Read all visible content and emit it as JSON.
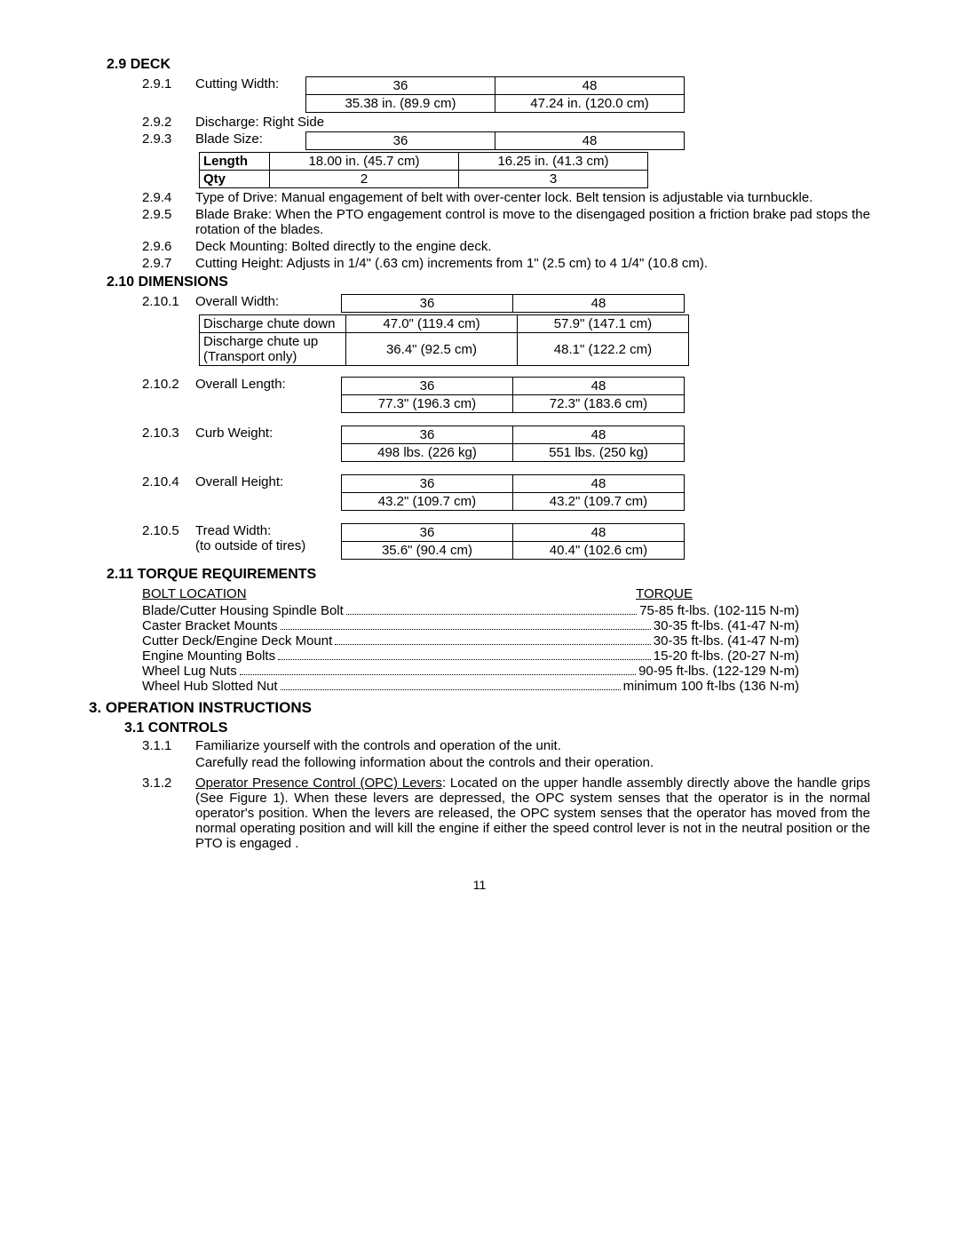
{
  "sections": {
    "deck": {
      "num": "2.9",
      "title": "DECK"
    },
    "dimensions": {
      "num": "2.10",
      "title": "DIMENSIONS"
    },
    "torque": {
      "num": "2.11",
      "title": "TORQUE REQUIREMENTS"
    },
    "op": {
      "num": "3.",
      "title": "OPERATION INSTRUCTIONS"
    },
    "controls": {
      "num": "3.1",
      "title": "CONTROLS"
    }
  },
  "deck": {
    "cutting_width": {
      "num": "2.9.1",
      "label": "Cutting Width:",
      "h36": "36",
      "h48": "48",
      "v36": "35.38 in. (89.9 cm)",
      "v48": "47.24 in. (120.0 cm)"
    },
    "discharge": {
      "num": "2.9.2",
      "text": "Discharge: Right Side"
    },
    "blade_size": {
      "num": "2.9.3",
      "label": "Blade Size:",
      "h36": "36",
      "h48": "48",
      "rows": [
        {
          "label": "Length",
          "v36": "18.00 in. (45.7 cm)",
          "v48": "16.25 in. (41.3 cm)"
        },
        {
          "label": "Qty",
          "v36": "2",
          "v48": "3"
        }
      ]
    },
    "drive": {
      "num": "2.9.4",
      "text": "Type of Drive: Manual engagement of belt with over-center lock.  Belt tension is adjustable via turnbuckle."
    },
    "brake": {
      "num": "2.9.5",
      "text": "Blade Brake:  When the PTO engagement control is move to the disengaged position a friction brake pad stops the rotation of the blades."
    },
    "mount": {
      "num": "2.9.6",
      "text": "Deck Mounting: Bolted directly to the engine deck."
    },
    "height": {
      "num": "2.9.7",
      "text": "Cutting Height: Adjusts in 1/4\" (.63 cm) increments from 1\" (2.5 cm) to 4 1/4\" (10.8 cm)."
    }
  },
  "dimensions": {
    "overall_width": {
      "num": "2.10.1",
      "label": "Overall Width:",
      "h36": "36",
      "h48": "48",
      "rows": [
        {
          "label": "Discharge chute down",
          "v36": "47.0\" (119.4 cm)",
          "v48": "57.9\" (147.1 cm)"
        },
        {
          "label": "Discharge chute up (Transport only)",
          "v36": "36.4\" (92.5 cm)",
          "v48": "48.1\" (122.2 cm)"
        }
      ]
    },
    "overall_length": {
      "num": "2.10.2",
      "label": "Overall Length:",
      "h36": "36",
      "h48": "48",
      "v36": "77.3\" (196.3 cm)",
      "v48": "72.3\" (183.6 cm)"
    },
    "curb_weight": {
      "num": "2.10.3",
      "label": "Curb Weight:",
      "h36": "36",
      "h48": "48",
      "v36": "498 lbs.   (226 kg)",
      "v48": "551 lbs. (250 kg)"
    },
    "overall_height": {
      "num": "2.10.4",
      "label": "Overall Height:",
      "h36": "36",
      "h48": "48",
      "v36": "43.2\" (109.7 cm)",
      "v48": "43.2\" (109.7 cm)"
    },
    "tread_width": {
      "num": "2.10.5",
      "label": "Tread Width:",
      "sub": "(to outside of tires)",
      "h36": "36",
      "h48": "48",
      "v36": "35.6\" (90.4 cm)",
      "v48": "40.4\" (102.6 cm)"
    }
  },
  "torque": {
    "head_loc": "BOLT LOCATION",
    "head_val": "TORQUE",
    "rows": [
      {
        "loc": "Blade/Cutter Housing Spindle Bolt",
        "val": "75-85 ft-lbs. (102-115 N-m)"
      },
      {
        "loc": "Caster Bracket Mounts",
        "val": "30-35 ft-lbs. (41-47 N-m)"
      },
      {
        "loc": "Cutter Deck/Engine Deck Mount",
        "val": "30-35 ft-lbs. (41-47 N-m)"
      },
      {
        "loc": "Engine Mounting Bolts",
        "val": "15-20 ft-lbs. (20-27 N-m)"
      },
      {
        "loc": "Wheel Lug Nuts",
        "val": "90-95 ft-lbs. (122-129 N-m)"
      },
      {
        "loc": "Wheel Hub Slotted Nut",
        "val": "minimum 100 ft-lbs (136 N-m)"
      }
    ]
  },
  "controls": {
    "i1": {
      "num": "3.1.1",
      "l1": "Familiarize yourself with the controls and operation of the unit.",
      "l2": "Carefully read the following information about the controls and their operation."
    },
    "i2": {
      "num": "3.1.2",
      "lead": "Operator Presence Control (OPC) Levers",
      "rest": ": Located on the upper handle assembly directly above the handle grips (See Figure 1). When these levers are depressed, the OPC system senses that the operator is in the normal operator's position.    When the levers are released, the OPC system senses that the operator has moved from the normal operating position        and will kill the engine if either the speed control lever is not in the neutral   position or the PTO is engaged ."
    }
  },
  "page": "11"
}
